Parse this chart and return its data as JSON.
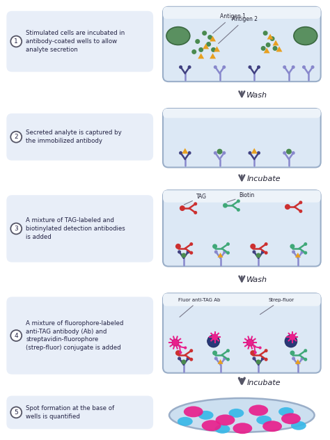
{
  "bg_color": "#ffffff",
  "well_fill_top": "#f0f4fa",
  "well_fill": "#dce8f5",
  "well_border": "#9aaec8",
  "step_bg": "#e8eef8",
  "steps": [
    "Stimulated cells are incubated in\nantibody-coated wells to allow\nanalyte secretion",
    "Secreted analyte is captured by\nthe immobilized antibody",
    "A mixture of TAG-labeled and\nbiotinylated detection antibodies\nis added",
    "A mixture of fluorophore-labeled\nanti-TAG antibody (Ab) and\nstreptavidin-fluorophore\n(strep-fluor) conjugate is added",
    "Spot formation at the base of\nwells is quantified"
  ],
  "wash_labels": [
    "Wash",
    "Incubate",
    "Wash",
    "Incubate"
  ],
  "cell_color": "#5a9060",
  "cell_edge": "#3a6840",
  "antigen1_color": "#4a8a50",
  "antigen2_color": "#e8a020",
  "ab_light": "#8888cc",
  "ab_dark": "#404080",
  "tag_color": "#cc3030",
  "biotin_color": "#40a878",
  "fluor_pink": "#e8208c",
  "strep_dark": "#283878",
  "strep_mid": "#4858a8",
  "spot_pink": "#e8208c",
  "spot_cyan": "#38b8e8",
  "arrow_color": "#555566",
  "label_color": "#222233"
}
